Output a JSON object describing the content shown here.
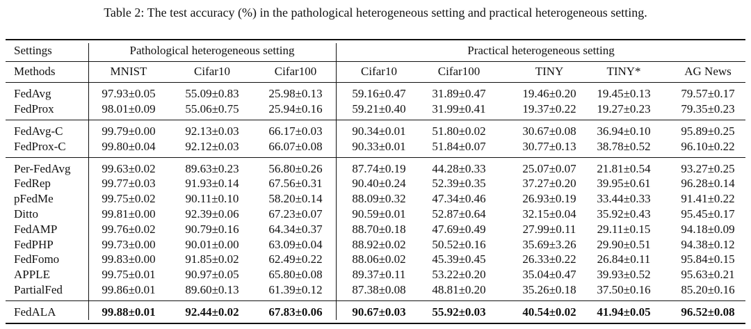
{
  "caption": "Table 2: The test accuracy (%) in the pathological heterogeneous setting and practical heterogeneous setting.",
  "table": {
    "settings_label": "Settings",
    "methods_label": "Methods",
    "groups": [
      {
        "label": "Pathological heterogeneous setting",
        "columns": [
          "MNIST",
          "Cifar10",
          "Cifar100"
        ]
      },
      {
        "label": "Practical heterogeneous setting",
        "columns": [
          "Cifar10",
          "Cifar100",
          "TINY",
          "TINY*",
          "AG News"
        ]
      }
    ],
    "sections": [
      {
        "rows": [
          {
            "method": "FedAvg",
            "cells": [
              "97.93±0.05",
              "55.09±0.83",
              "25.98±0.13",
              "59.16±0.47",
              "31.89±0.47",
              "19.46±0.20",
              "19.45±0.13",
              "79.57±0.17"
            ]
          },
          {
            "method": "FedProx",
            "cells": [
              "98.01±0.09",
              "55.06±0.75",
              "25.94±0.16",
              "59.21±0.40",
              "31.99±0.41",
              "19.37±0.22",
              "19.27±0.23",
              "79.35±0.23"
            ]
          }
        ]
      },
      {
        "rows": [
          {
            "method": "FedAvg-C",
            "cells": [
              "99.79±0.00",
              "92.13±0.03",
              "66.17±0.03",
              "90.34±0.01",
              "51.80±0.02",
              "30.67±0.08",
              "36.94±0.10",
              "95.89±0.25"
            ]
          },
          {
            "method": "FedProx-C",
            "cells": [
              "99.80±0.04",
              "92.12±0.03",
              "66.07±0.08",
              "90.33±0.01",
              "51.84±0.07",
              "30.77±0.13",
              "38.78±0.52",
              "96.10±0.22"
            ]
          }
        ]
      },
      {
        "rows": [
          {
            "method": "Per-FedAvg",
            "cells": [
              "99.63±0.02",
              "89.63±0.23",
              "56.80±0.26",
              "87.74±0.19",
              "44.28±0.33",
              "25.07±0.07",
              "21.81±0.54",
              "93.27±0.25"
            ]
          },
          {
            "method": "FedRep",
            "cells": [
              "99.77±0.03",
              "91.93±0.14",
              "67.56±0.31",
              "90.40±0.24",
              "52.39±0.35",
              "37.27±0.20",
              "39.95±0.61",
              "96.28±0.14"
            ]
          },
          {
            "method": "pFedMe",
            "cells": [
              "99.75±0.02",
              "90.11±0.10",
              "58.20±0.14",
              "88.09±0.32",
              "47.34±0.46",
              "26.93±0.19",
              "33.44±0.33",
              "91.41±0.22"
            ]
          },
          {
            "method": "Ditto",
            "cells": [
              "99.81±0.00",
              "92.39±0.06",
              "67.23±0.07",
              "90.59±0.01",
              "52.87±0.64",
              "32.15±0.04",
              "35.92±0.43",
              "95.45±0.17"
            ]
          },
          {
            "method": "FedAMP",
            "cells": [
              "99.76±0.02",
              "90.79±0.16",
              "64.34±0.37",
              "88.70±0.18",
              "47.69±0.49",
              "27.99±0.11",
              "29.11±0.15",
              "94.18±0.09"
            ]
          },
          {
            "method": "FedPHP",
            "cells": [
              "99.73±0.00",
              "90.01±0.00",
              "63.09±0.04",
              "88.92±0.02",
              "50.52±0.16",
              "35.69±3.26",
              "29.90±0.51",
              "94.38±0.12"
            ]
          },
          {
            "method": "FedFomo",
            "cells": [
              "99.83±0.00",
              "91.85±0.02",
              "62.49±0.22",
              "88.06±0.02",
              "45.39±0.45",
              "26.33±0.22",
              "26.84±0.11",
              "95.84±0.15"
            ]
          },
          {
            "method": "APPLE",
            "cells": [
              "99.75±0.01",
              "90.97±0.05",
              "65.80±0.08",
              "89.37±0.11",
              "53.22±0.20",
              "35.04±0.47",
              "39.93±0.52",
              "95.63±0.21"
            ]
          },
          {
            "method": "PartialFed",
            "cells": [
              "99.86±0.01",
              "89.60±0.13",
              "61.39±0.12",
              "87.38±0.08",
              "48.81±0.20",
              "35.26±0.18",
              "37.50±0.16",
              "85.20±0.16"
            ]
          }
        ]
      },
      {
        "bold": true,
        "rows": [
          {
            "method": "FedALA",
            "cells": [
              "99.88±0.01",
              "92.44±0.02",
              "67.83±0.06",
              "90.67±0.03",
              "55.92±0.03",
              "40.54±0.02",
              "41.94±0.05",
              "96.52±0.08"
            ]
          }
        ]
      }
    ]
  }
}
